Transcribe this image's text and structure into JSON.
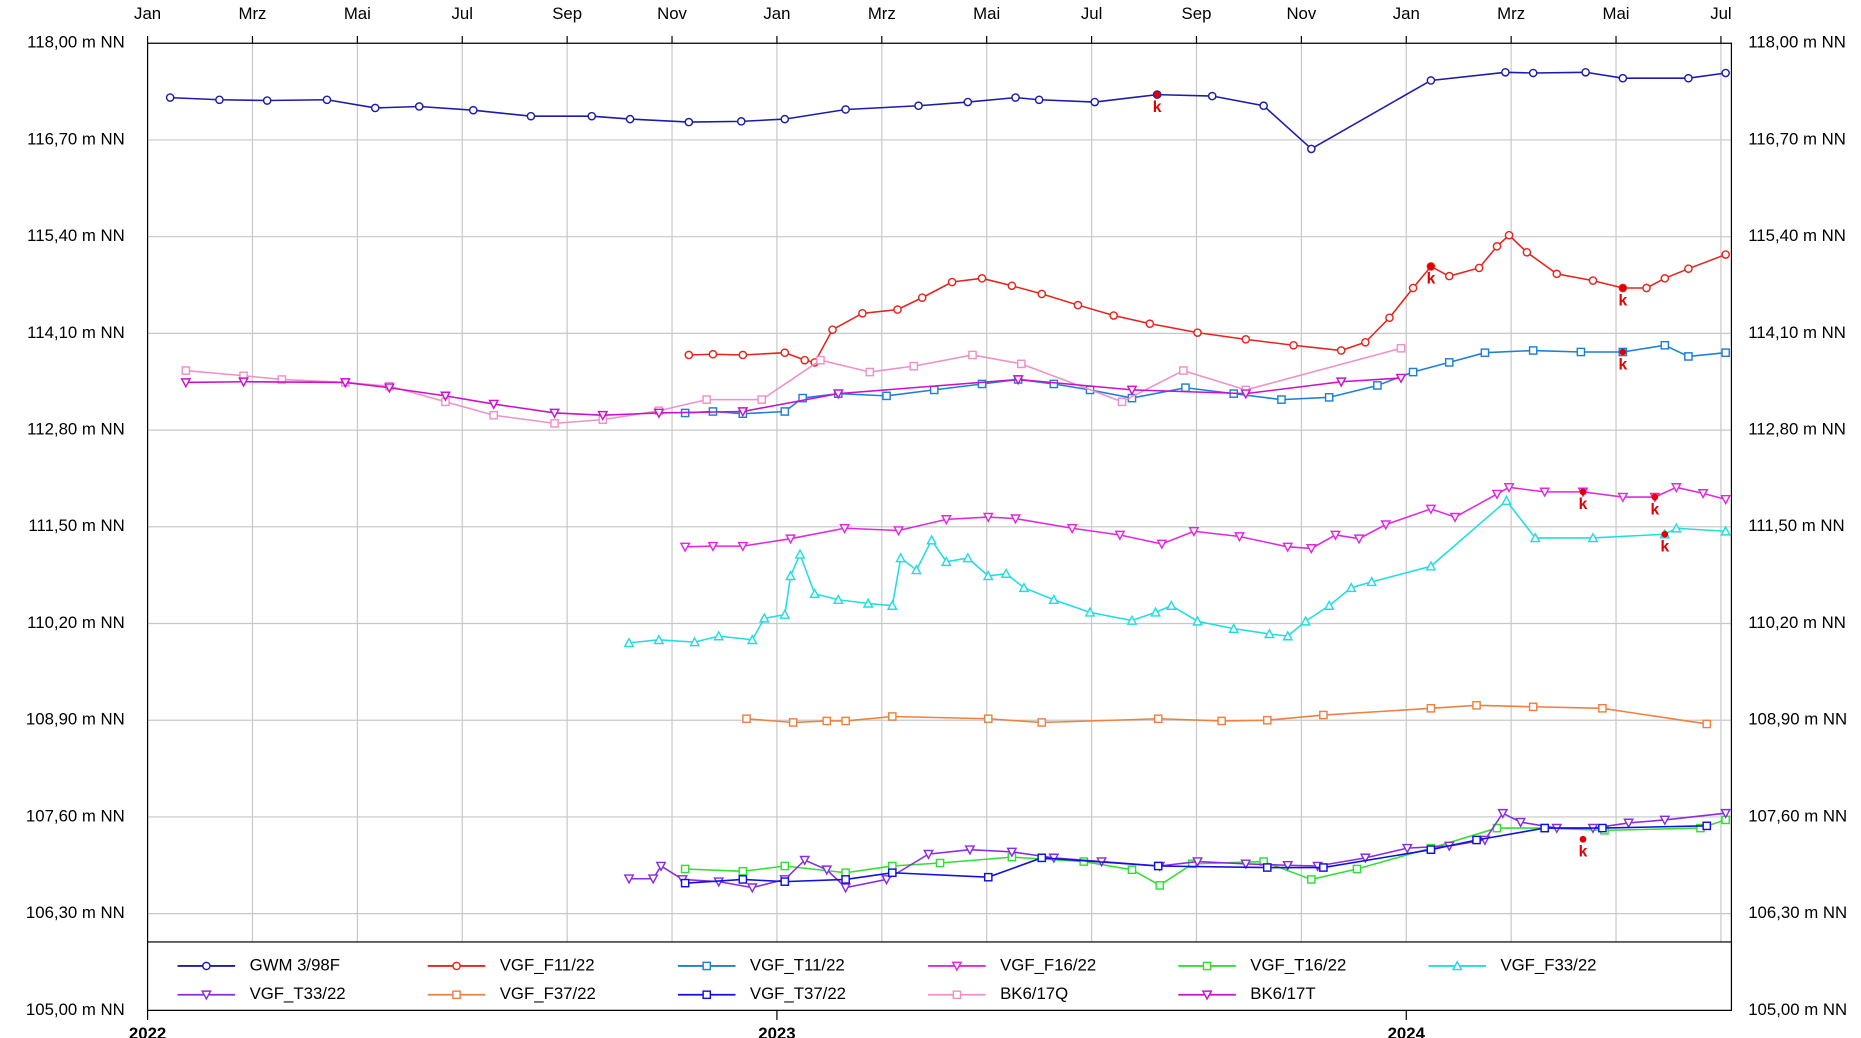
{
  "chart_data": {
    "type": "line",
    "xlim": [
      0,
      30.2
    ],
    "ylim": [
      105,
      118
    ],
    "xticks": [
      {
        "value": 0,
        "label": "Jan"
      },
      {
        "value": 2,
        "label": "Mrz"
      },
      {
        "value": 4,
        "label": "Mai"
      },
      {
        "value": 6,
        "label": "Jul"
      },
      {
        "value": 8,
        "label": "Sep"
      },
      {
        "value": 10,
        "label": "Nov"
      },
      {
        "value": 12,
        "label": "Jan"
      },
      {
        "value": 14,
        "label": "Mrz"
      },
      {
        "value": 16,
        "label": "Mai"
      },
      {
        "value": 18,
        "label": "Jul"
      },
      {
        "value": 20,
        "label": "Sep"
      },
      {
        "value": 22,
        "label": "Nov"
      },
      {
        "value": 24,
        "label": "Jan"
      },
      {
        "value": 26,
        "label": "Mrz"
      },
      {
        "value": 28,
        "label": "Mai"
      },
      {
        "value": 30,
        "label": "Jul"
      }
    ],
    "year_ticks": [
      {
        "value": 0,
        "label": "2022"
      },
      {
        "value": 12,
        "label": "2023"
      },
      {
        "value": 24,
        "label": "2024"
      }
    ],
    "yticks": [
      {
        "value": 105,
        "label": "105,00 m NN"
      },
      {
        "value": 106.3,
        "label": "106,30 m NN"
      },
      {
        "value": 107.6,
        "label": "107,60 m NN"
      },
      {
        "value": 108.9,
        "label": "108,90 m NN"
      },
      {
        "value": 110.2,
        "label": "110,20 m NN"
      },
      {
        "value": 111.5,
        "label": "111,50 m NN"
      },
      {
        "value": 112.8,
        "label": "112,80 m NN"
      },
      {
        "value": 114.1,
        "label": "114,10 m NN"
      },
      {
        "value": 115.4,
        "label": "115,40 m NN"
      },
      {
        "value": 116.7,
        "label": "116,70 m NN"
      },
      {
        "value": 118,
        "label": "118,00 m NN"
      }
    ],
    "grid": true,
    "series": [
      {
        "name": "GWM 3/98F",
        "color": "#1c1ca8",
        "marker": "circle",
        "x": [
          0.43,
          1.37,
          2.28,
          3.42,
          4.34,
          5.18,
          6.21,
          7.31,
          8.47,
          9.2,
          10.32,
          11.32,
          12.15,
          13.31,
          14.7,
          15.64,
          16.55,
          17.0,
          18.06,
          19.25,
          20.3,
          21.28,
          22.19,
          24.47,
          25.89,
          26.42,
          27.42,
          28.13,
          29.38,
          30.09
        ],
        "values": [
          117.27,
          117.24,
          117.23,
          117.24,
          117.13,
          117.15,
          117.1,
          117.02,
          117.02,
          116.98,
          116.94,
          116.95,
          116.98,
          117.11,
          117.16,
          117.21,
          117.27,
          117.24,
          117.21,
          117.31,
          117.29,
          117.16,
          116.58,
          117.5,
          117.61,
          117.6,
          117.61,
          117.53,
          117.53,
          117.6
        ]
      },
      {
        "name": "VGF_F11/22",
        "color": "#e8221c",
        "marker": "circle",
        "x": [
          10.32,
          10.78,
          11.35,
          12.15,
          12.53,
          12.72,
          13.06,
          13.63,
          14.3,
          14.77,
          15.34,
          15.91,
          16.48,
          17.05,
          17.74,
          18.42,
          19.11,
          20.02,
          20.94,
          21.85,
          22.76,
          23.22,
          23.68,
          24.13,
          24.47,
          24.82,
          25.39,
          25.73,
          25.96,
          26.3,
          26.87,
          27.56,
          28.13,
          28.58,
          28.93,
          29.38,
          30.09
        ],
        "values": [
          113.81,
          113.82,
          113.81,
          113.84,
          113.74,
          113.71,
          114.15,
          114.37,
          114.42,
          114.58,
          114.79,
          114.84,
          114.74,
          114.63,
          114.48,
          114.34,
          114.23,
          114.11,
          114.02,
          113.94,
          113.87,
          113.98,
          114.31,
          114.71,
          115.0,
          114.87,
          114.98,
          115.27,
          115.42,
          115.19,
          114.9,
          114.81,
          114.71,
          114.71,
          114.84,
          114.97,
          115.16
        ]
      },
      {
        "name": "VGF_T11/22",
        "color": "#1e7fd8",
        "marker": "square",
        "x": [
          10.25,
          10.78,
          11.35,
          12.15,
          12.49,
          13.17,
          14.09,
          15.0,
          15.91,
          16.6,
          17.28,
          17.97,
          18.77,
          19.79,
          20.71,
          21.62,
          22.53,
          23.45,
          24.13,
          24.82,
          25.5,
          26.42,
          27.33,
          28.13,
          28.93,
          29.38,
          30.09
        ],
        "values": [
          113.03,
          113.05,
          113.02,
          113.05,
          113.23,
          113.29,
          113.26,
          113.34,
          113.42,
          113.48,
          113.42,
          113.34,
          113.23,
          113.37,
          113.29,
          113.21,
          113.24,
          113.4,
          113.58,
          113.71,
          113.84,
          113.87,
          113.85,
          113.85,
          113.94,
          113.79,
          113.84
        ]
      },
      {
        "name": "VGF_F16/22",
        "color": "#e028e0",
        "marker": "tri-down",
        "x": [
          10.25,
          10.78,
          11.35,
          12.26,
          13.29,
          14.32,
          15.23,
          16.03,
          16.55,
          17.63,
          18.54,
          19.34,
          19.95,
          20.82,
          21.74,
          22.19,
          22.65,
          23.1,
          23.61,
          24.47,
          24.93,
          25.73,
          25.96,
          26.64,
          27.37,
          28.13,
          28.74,
          29.15,
          29.66,
          30.09
        ],
        "values": [
          111.23,
          111.24,
          111.24,
          111.34,
          111.48,
          111.45,
          111.6,
          111.63,
          111.61,
          111.48,
          111.39,
          111.27,
          111.44,
          111.37,
          111.23,
          111.21,
          111.39,
          111.34,
          111.53,
          111.74,
          111.63,
          111.94,
          112.03,
          111.97,
          111.97,
          111.9,
          111.9,
          112.03,
          111.95,
          111.87
        ]
      },
      {
        "name": "VGF_T16/22",
        "color": "#30e030",
        "marker": "square",
        "x": [
          10.25,
          11.35,
          12.15,
          13.31,
          14.2,
          15.11,
          16.48,
          17.85,
          18.77,
          19.3,
          19.92,
          21.28,
          22.19,
          23.06,
          24.47,
          25.73,
          26.64,
          27.78,
          29.61,
          30.09
        ],
        "values": [
          106.9,
          106.87,
          106.94,
          106.85,
          106.94,
          106.98,
          107.06,
          107.0,
          106.89,
          106.68,
          106.97,
          107.0,
          106.76,
          106.9,
          107.18,
          107.45,
          107.45,
          107.42,
          107.45,
          107.56
        ]
      },
      {
        "name": "VGF_F33/22",
        "color": "#22dde0",
        "marker": "tri-up",
        "x": [
          9.18,
          9.75,
          10.43,
          10.89,
          11.53,
          11.76,
          12.15,
          12.26,
          12.44,
          12.72,
          13.17,
          13.74,
          14.2,
          14.36,
          14.66,
          14.95,
          15.23,
          15.64,
          16.03,
          16.37,
          16.71,
          17.28,
          17.97,
          18.77,
          19.22,
          19.52,
          20.02,
          20.71,
          21.39,
          21.74,
          22.08,
          22.53,
          22.95,
          23.34,
          24.47,
          25.91,
          26.46,
          27.56,
          28.93,
          29.15,
          30.09
        ],
        "values": [
          109.94,
          109.98,
          109.95,
          110.03,
          109.98,
          110.27,
          110.32,
          110.84,
          111.13,
          110.6,
          110.52,
          110.47,
          110.44,
          111.08,
          110.92,
          111.32,
          111.03,
          111.08,
          110.84,
          110.87,
          110.68,
          110.52,
          110.35,
          110.24,
          110.35,
          110.44,
          110.23,
          110.13,
          110.06,
          110.03,
          110.23,
          110.44,
          110.68,
          110.76,
          110.97,
          111.85,
          111.35,
          111.35,
          111.4,
          111.48,
          111.44
        ]
      },
      {
        "name": "VGF_T33/22",
        "color": "#8a2be2",
        "marker": "tri-down",
        "x": [
          9.18,
          9.64,
          9.79,
          10.2,
          10.89,
          11.53,
          12.15,
          12.53,
          12.95,
          13.31,
          14.09,
          14.89,
          15.68,
          16.48,
          17.28,
          18.19,
          19.3,
          20.02,
          20.94,
          21.74,
          22.31,
          23.22,
          24.02,
          24.82,
          25.5,
          25.84,
          26.18,
          26.87,
          27.56,
          28.24,
          28.93,
          30.09
        ],
        "values": [
          106.77,
          106.77,
          106.94,
          106.76,
          106.73,
          106.65,
          106.76,
          107.02,
          106.89,
          106.65,
          106.76,
          107.1,
          107.16,
          107.13,
          107.05,
          107.0,
          106.94,
          107.0,
          106.97,
          106.95,
          106.94,
          107.05,
          107.18,
          107.21,
          107.29,
          107.65,
          107.53,
          107.45,
          107.45,
          107.52,
          107.56,
          107.65
        ]
      },
      {
        "name": "VGF_F37/22",
        "color": "#f08040",
        "marker": "square",
        "x": [
          11.42,
          12.31,
          12.95,
          13.31,
          14.2,
          16.03,
          17.05,
          19.27,
          20.48,
          21.35,
          22.42,
          24.47,
          25.34,
          26.42,
          27.74,
          29.73
        ],
        "values": [
          108.92,
          108.87,
          108.89,
          108.89,
          108.95,
          108.92,
          108.87,
          108.92,
          108.89,
          108.9,
          108.97,
          109.06,
          109.1,
          109.08,
          109.06,
          108.85
        ]
      },
      {
        "name": "VGF_T37/22",
        "color": "#1010e0",
        "marker": "square",
        "x": [
          10.25,
          11.35,
          12.15,
          13.31,
          14.2,
          16.03,
          17.05,
          19.27,
          21.35,
          22.42,
          24.47,
          25.34,
          26.64,
          27.74,
          29.73
        ],
        "values": [
          106.71,
          106.76,
          106.73,
          106.76,
          106.85,
          106.79,
          107.05,
          106.94,
          106.92,
          106.92,
          107.16,
          107.29,
          107.45,
          107.45,
          107.48
        ]
      },
      {
        "name": "BK6/17Q",
        "color": "#f090c8",
        "marker": "square",
        "x": [
          0.73,
          1.83,
          2.56,
          3.77,
          4.61,
          5.68,
          6.6,
          7.76,
          8.68,
          9.75,
          10.66,
          11.71,
          12.83,
          13.77,
          14.61,
          15.73,
          16.66,
          18.58,
          19.75,
          20.94,
          23.9
        ],
        "values": [
          113.6,
          113.53,
          113.48,
          113.44,
          113.39,
          113.18,
          113.0,
          112.89,
          112.94,
          113.06,
          113.21,
          113.21,
          113.74,
          113.58,
          113.66,
          113.81,
          113.69,
          113.18,
          113.6,
          113.34,
          113.9
        ]
      },
      {
        "name": "BK6/17T",
        "color": "#cc10cc",
        "marker": "tri-down",
        "x": [
          0.73,
          1.83,
          3.77,
          4.61,
          5.68,
          6.6,
          7.76,
          8.68,
          9.75,
          11.35,
          13.17,
          16.6,
          18.77,
          20.94,
          22.76,
          23.9
        ],
        "values": [
          113.44,
          113.45,
          113.44,
          113.37,
          113.26,
          113.15,
          113.03,
          113.0,
          113.03,
          113.05,
          113.29,
          113.48,
          113.34,
          113.29,
          113.45,
          113.5
        ]
      }
    ],
    "annotations": [
      {
        "text": "k",
        "x": 19.25,
        "y": 117.31
      },
      {
        "text": "k",
        "x": 24.47,
        "y": 115.0
      },
      {
        "text": "k",
        "x": 28.13,
        "y": 114.71
      },
      {
        "text": "k",
        "x": 28.13,
        "y": 113.85
      },
      {
        "text": "k",
        "x": 27.37,
        "y": 111.97
      },
      {
        "text": "k",
        "x": 28.74,
        "y": 111.9
      },
      {
        "text": "k",
        "x": 28.93,
        "y": 111.4
      },
      {
        "text": "k",
        "x": 27.37,
        "y": 107.3
      }
    ]
  }
}
